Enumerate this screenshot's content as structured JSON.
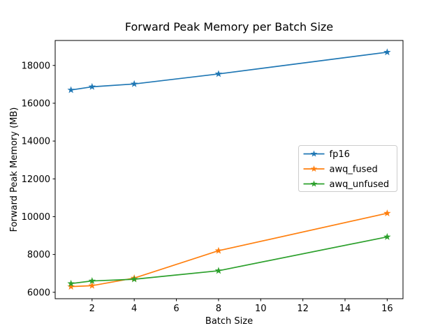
{
  "chart_data": {
    "type": "line",
    "title": "Forward Peak Memory per Batch Size",
    "xlabel": "Batch Size",
    "ylabel": "Forward Peak Memory (MB)",
    "x": [
      1,
      2,
      4,
      8,
      16
    ],
    "series": [
      {
        "name": "fp16",
        "color": "#1f77b4",
        "values": [
          16700,
          16870,
          17020,
          17550,
          18700
        ]
      },
      {
        "name": "awq_fused",
        "color": "#ff7f0e",
        "values": [
          6300,
          6350,
          6750,
          8200,
          10180
        ]
      },
      {
        "name": "awq_unfused",
        "color": "#2ca02c",
        "values": [
          6460,
          6600,
          6690,
          7140,
          8930
        ]
      }
    ],
    "xlim": [
      0.25,
      16.75
    ],
    "ylim": [
      5660,
      19320
    ],
    "xticks": [
      2,
      4,
      6,
      8,
      10,
      12,
      14,
      16
    ],
    "yticks": [
      6000,
      8000,
      10000,
      12000,
      14000,
      16000,
      18000
    ],
    "marker": "star",
    "grid": false,
    "legend_position": "center right",
    "colors": {
      "spine": "#000000",
      "legend_border": "#cccccc",
      "background": "#ffffff"
    }
  }
}
